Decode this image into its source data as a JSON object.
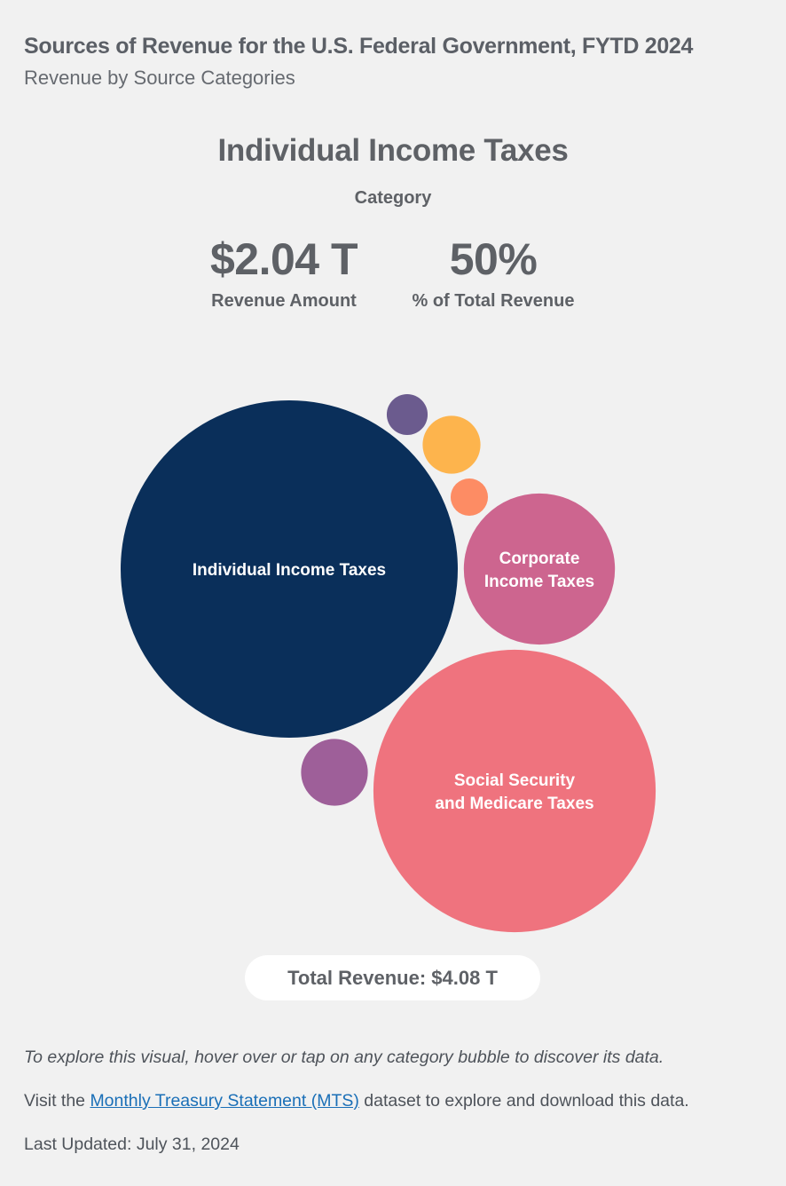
{
  "header": {
    "title": "Sources of Revenue for the U.S. Federal Government, FYTD 2024",
    "subtitle": "Revenue by Source Categories"
  },
  "selected": {
    "name": "Individual Income Taxes",
    "category_label": "Category",
    "amount": "$2.04 T",
    "amount_label": "Revenue Amount",
    "percent": "50%",
    "percent_label": "% of Total Revenue"
  },
  "total": "Total Revenue: $4.08 T",
  "footer": {
    "hint": "To explore this visual, hover over or tap on any category bubble to discover its data.",
    "visit_prefix": "Visit the",
    "visit_link": "Monthly Treasury Statement (MTS)",
    "visit_suffix": "dataset to explore and download this data.",
    "updated": "Last Updated: July 31, 2024"
  },
  "chart_data": {
    "type": "bubble",
    "unit": "Trillions USD",
    "total": 4.08,
    "bubbles": [
      {
        "name": "Individual Income Taxes",
        "label_lines": [
          "Individual Income Taxes"
        ],
        "value": 2.04,
        "color": "#0a2f5a"
      },
      {
        "name": "Social Security and Medicare Taxes",
        "label_lines": [
          "Social Security",
          "and Medicare Taxes"
        ],
        "value": 1.43,
        "color": "#ef737e"
      },
      {
        "name": "Corporate Income Taxes",
        "label_lines": [
          "Corporate",
          "Income Taxes"
        ],
        "value": 0.41,
        "color": "#cd658f"
      },
      {
        "name": "",
        "label_lines": [],
        "value": 0.08,
        "color": "#9e5f99"
      },
      {
        "name": "",
        "label_lines": [],
        "value": 0.06,
        "color": "#fdb44d"
      },
      {
        "name": "",
        "label_lines": [],
        "value": 0.03,
        "color": "#6b5b8e"
      },
      {
        "name": "",
        "label_lines": [],
        "value": 0.025,
        "color": "#fd8c64"
      }
    ]
  }
}
